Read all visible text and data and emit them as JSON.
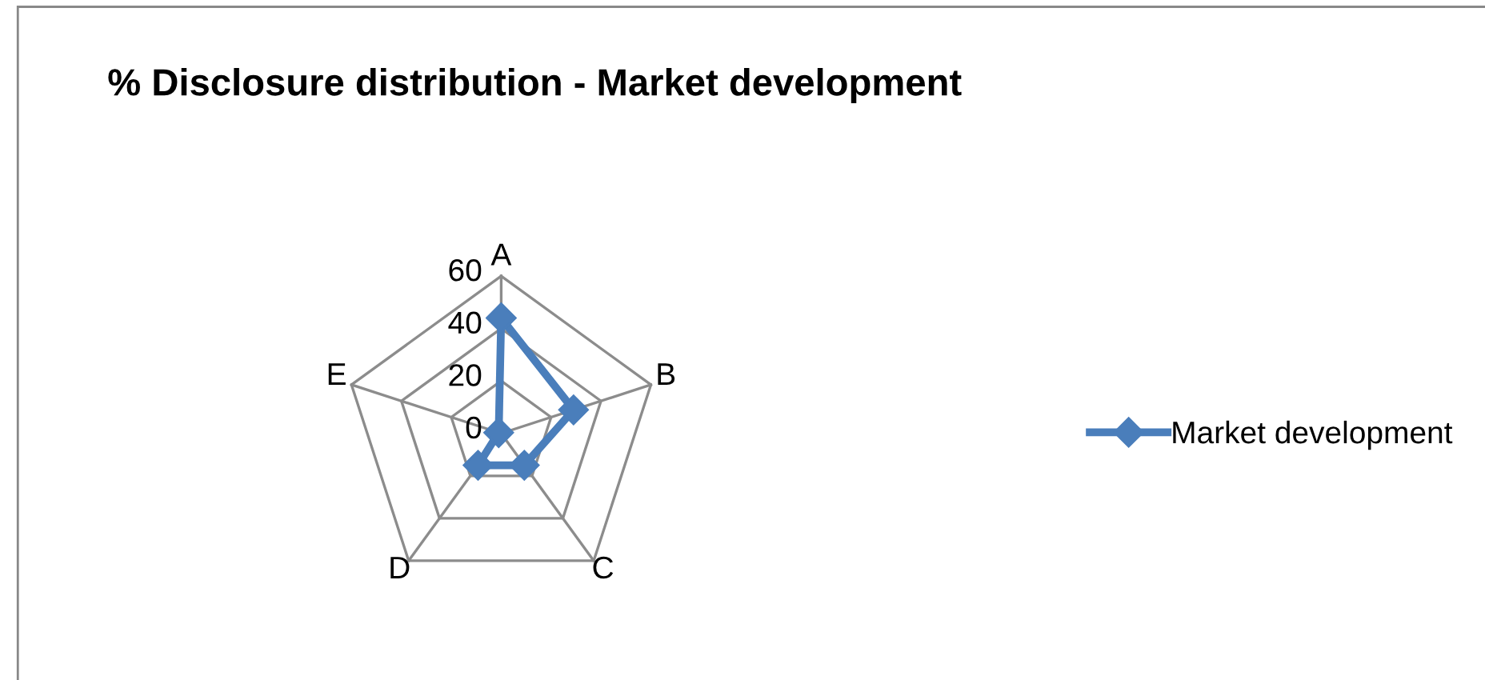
{
  "chart_data": {
    "type": "radar",
    "title": "% Disclosure distribution - Market development",
    "categories": [
      "A",
      "B",
      "C",
      "D",
      "E"
    ],
    "series": [
      {
        "name": "Market development",
        "color": "#4a7ebb",
        "values": [
          44,
          29,
          15,
          15,
          1
        ]
      }
    ],
    "ylim": [
      0,
      60
    ],
    "yticks": [
      0,
      20,
      40,
      60
    ],
    "grid": true,
    "legend": "right",
    "marker": "diamond",
    "line_style": "solid"
  }
}
